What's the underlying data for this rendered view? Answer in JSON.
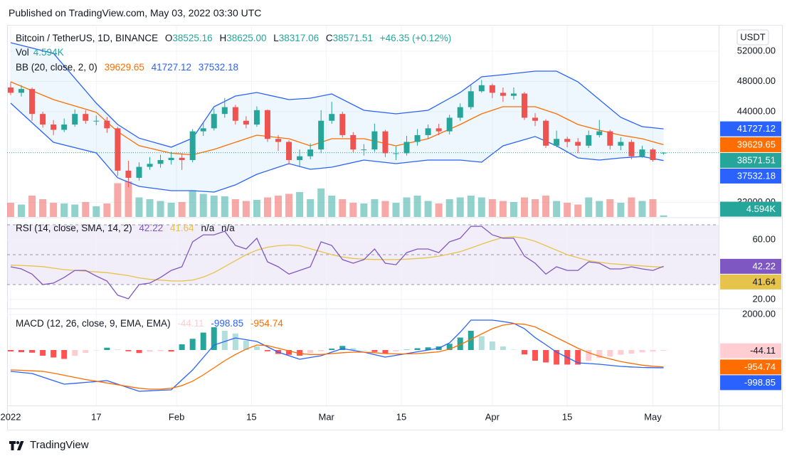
{
  "header": {
    "published": "Published on TradingView.com, May 03, 2022 03:30 UTC"
  },
  "footer": {
    "brand": "TradingView"
  },
  "chart_data": [
    {
      "type": "candlestick",
      "title": "Bitcoin / TetherUS, 1D, BINANCE",
      "currency": "USDT",
      "legend": [
        {
          "key": "O",
          "label": "38525.16"
        },
        {
          "key": "H",
          "label": "38625.00"
        },
        {
          "key": "L",
          "label": "38317.06"
        },
        {
          "key": "C",
          "label": "38571.51"
        }
      ],
      "change": "+46.35 (+0.12%)",
      "up_color": "#26a69a",
      "down_color": "#ef5350",
      "x": [
        0,
        2,
        4,
        6,
        8,
        10,
        12,
        14,
        16,
        18,
        20,
        22,
        24,
        26,
        28,
        30,
        32,
        34,
        36,
        38,
        40,
        42,
        44,
        46,
        48,
        50,
        52,
        54,
        56,
        58,
        60,
        62,
        64,
        66,
        68,
        70,
        72,
        74,
        76,
        78,
        80,
        82,
        84,
        86,
        88,
        90,
        92,
        94,
        96,
        98,
        100,
        102,
        104,
        106,
        108,
        110,
        112,
        114,
        116,
        118,
        120,
        122
      ],
      "open": [
        47200,
        46500,
        47000,
        43700,
        42300,
        41600,
        42300,
        43700,
        42800,
        42800,
        41800,
        36200,
        35250,
        36700,
        37100,
        37600,
        37900,
        37600,
        41400,
        41800,
        43700,
        44600,
        42800,
        42300,
        44200,
        40400,
        40000,
        37600,
        38100,
        39000,
        42800,
        43700,
        40900,
        39000,
        39000,
        41400,
        38500,
        38500,
        40000,
        40900,
        41800,
        41400,
        43200,
        44600,
        46700,
        47500,
        46500,
        46100,
        46400,
        43200,
        42800,
        39500,
        40400,
        40000,
        39500,
        40900,
        41400,
        39500,
        40000,
        38100,
        39000,
        38525.16
      ],
      "high": [
        47900,
        47500,
        47200,
        44000,
        42900,
        43100,
        44300,
        44200,
        43500,
        43300,
        42000,
        37500,
        37300,
        38000,
        38300,
        38700,
        38500,
        41700,
        42500,
        44400,
        45800,
        44900,
        43400,
        44700,
        44300,
        40900,
        40200,
        39000,
        39800,
        44200,
        45300,
        44000,
        41300,
        39700,
        42400,
        41600,
        39400,
        40800,
        41700,
        42300,
        42400,
        43600,
        45100,
        47500,
        48200,
        47700,
        47200,
        47200,
        46600,
        43800,
        43000,
        41500,
        40700,
        40500,
        41500,
        42900,
        41600,
        40600,
        40300,
        39500,
        39200,
        38625
      ],
      "low": [
        46200,
        46000,
        42800,
        41900,
        40900,
        41300,
        42000,
        42400,
        42200,
        41200,
        35500,
        34000,
        34900,
        36300,
        36600,
        37000,
        36300,
        37300,
        40800,
        41500,
        43200,
        42300,
        41800,
        42000,
        40000,
        38800,
        37000,
        36800,
        37700,
        38500,
        42400,
        40600,
        38600,
        38200,
        38700,
        38000,
        37600,
        38200,
        39500,
        40400,
        40900,
        41000,
        42800,
        44300,
        46500,
        45800,
        45300,
        45600,
        42900,
        42100,
        39200,
        39300,
        39300,
        38500,
        39200,
        40600,
        39000,
        38900,
        37700,
        37900,
        37400,
        38317.06
      ],
      "close": [
        46500,
        47000,
        43700,
        42300,
        41600,
        42300,
        43700,
        42800,
        42800,
        41800,
        36200,
        35250,
        36700,
        37100,
        37600,
        37900,
        37600,
        41400,
        41800,
        43700,
        44600,
        42800,
        42300,
        44200,
        40400,
        40000,
        37600,
        38100,
        39000,
        42800,
        43700,
        40900,
        39000,
        39000,
        41400,
        38500,
        38500,
        40000,
        40900,
        41800,
        41400,
        43200,
        44600,
        46700,
        47500,
        46500,
        46100,
        46400,
        43200,
        42800,
        39500,
        40400,
        40000,
        39500,
        40900,
        41400,
        39500,
        40000,
        38100,
        39000,
        37600,
        38571.51
      ],
      "volume": {
        "name": "Vol",
        "last_label": "4.594K",
        "ylim": [
          0,
          120
        ],
        "values": [
          40,
          35,
          60,
          50,
          40,
          38,
          35,
          42,
          30,
          38,
          95,
          100,
          55,
          50,
          45,
          40,
          42,
          75,
          65,
          60,
          58,
          50,
          45,
          48,
          55,
          60,
          65,
          70,
          50,
          80,
          60,
          50,
          40,
          38,
          50,
          45,
          40,
          55,
          60,
          45,
          38,
          50,
          55,
          60,
          55,
          50,
          45,
          42,
          55,
          50,
          60,
          45,
          40,
          35,
          55,
          45,
          50,
          40,
          55,
          45,
          50,
          4.594
        ]
      },
      "bb": {
        "name": "BB (20, close, 2, 0)",
        "fill": "rgba(33,150,243,0.08)",
        "x": [
          0,
          8,
          16,
          20,
          24,
          30,
          34,
          38,
          42,
          46,
          52,
          56,
          60,
          66,
          72,
          78,
          84,
          88,
          92,
          98,
          102,
          106,
          110,
          114,
          118,
          122
        ],
        "lines": [
          {
            "color": "#ff6d00",
            "values": [
              47950,
              45600,
              43910,
              41360,
              39500,
              38500,
              38300,
              39010,
              39950,
              40890,
              40420,
              39480,
              40420,
              40420,
              39480,
              40420,
              42300,
              43720,
              44660,
              44660,
              43720,
              42300,
              41550,
              40890,
              40420,
              39629.65
            ]
          },
          {
            "color": "#2962ff",
            "values": [
              53130,
              51720,
              45130,
              42300,
              40500,
              39300,
              40500,
              44660,
              46070,
              46540,
              45600,
              45790,
              46350,
              44190,
              43720,
              44190,
              46540,
              48610,
              48890,
              49360,
              49360,
              47950,
              45600,
              43250,
              42020,
              41727.12
            ]
          },
          {
            "color": "#2962ff",
            "values": [
              45130,
              39950,
              38540,
              35250,
              34120,
              33550,
              33550,
              33360,
              34310,
              35720,
              37130,
              36380,
              36660,
              37600,
              37130,
              37600,
              37600,
              37320,
              39480,
              40710,
              39480,
              37880,
              37600,
              37880,
              38070,
              37532.18
            ]
          }
        ]
      },
      "xlim": [
        -0.66,
        132.3
      ],
      "ylim": [
        30070,
        55480
      ],
      "yticks": [
        {
          "value": 52000,
          "label": "52000.00"
        },
        {
          "value": 48000,
          "label": "48000.00"
        },
        {
          "value": 44000,
          "label": "44000.00"
        },
        {
          "value": 32000,
          "label": "32000.00"
        }
      ]
    },
    {
      "type": "line",
      "title": "RSI (14, close, SMA, 14, 2)",
      "na_labels": [
        "n/a",
        "n/a"
      ],
      "bands": [
        70,
        50,
        30
      ],
      "band_fill": "rgba(126,87,194,0.1)",
      "x": [
        0,
        2,
        4,
        6,
        8,
        10,
        12,
        14,
        16,
        18,
        20,
        22,
        24,
        26,
        28,
        30,
        32,
        34,
        36,
        38,
        40,
        42,
        44,
        46,
        48,
        50,
        52,
        54,
        56,
        58,
        60,
        62,
        64,
        66,
        68,
        70,
        72,
        74,
        76,
        78,
        80,
        82,
        84,
        86,
        88,
        90,
        92,
        94,
        96,
        98,
        100,
        102,
        104,
        106,
        108,
        110,
        112,
        114,
        116,
        118,
        120,
        122
      ],
      "series": [
        {
          "color": "#7e57c2",
          "values": [
            41.9,
            40.5,
            37,
            30,
            31,
            34.8,
            39.5,
            39.5,
            35.7,
            32.4,
            22.9,
            20.5,
            30,
            31,
            34.8,
            39.5,
            41.9,
            58.6,
            63.3,
            63.3,
            65.7,
            56.2,
            53.8,
            61,
            45.2,
            41.9,
            37,
            39.5,
            41.9,
            58.6,
            56.2,
            46.7,
            44.3,
            46.7,
            53.8,
            44.3,
            43.3,
            51.4,
            53.8,
            53.8,
            51.4,
            58.6,
            61,
            69,
            69,
            63.3,
            61,
            61,
            49,
            44.3,
            37,
            41.9,
            39.5,
            39.5,
            45.2,
            44.3,
            40.5,
            40.5,
            41.9,
            40.5,
            39.5,
            42.22
          ]
        },
        {
          "color": "#e6c34a",
          "values": [
            43,
            42.8,
            42.5,
            42,
            41,
            40,
            39.5,
            39,
            38.5,
            38,
            37,
            36,
            34.5,
            33.5,
            33,
            32.5,
            32.4,
            33,
            35,
            38,
            42,
            46,
            50,
            53,
            55,
            56,
            56.5,
            56,
            54,
            52,
            50,
            48.5,
            47.5,
            47,
            46.8,
            46.7,
            46.7,
            47,
            47.5,
            48,
            49,
            50.5,
            52,
            54.5,
            57,
            59.5,
            61.5,
            62,
            61,
            59,
            56,
            53,
            50,
            48,
            46,
            45,
            44,
            43.5,
            43,
            42.5,
            42,
            41.64
          ]
        }
      ],
      "xlim": [
        -0.66,
        132.3
      ],
      "ylim": [
        14.29,
        74.29
      ],
      "yticks": [
        {
          "value": 60,
          "label": "60.00"
        },
        {
          "value": 20,
          "label": "20.00"
        }
      ]
    },
    {
      "type": "macd",
      "title": "MACD (12, 26, close, 9, EMA, EMA)",
      "x": [
        0,
        2,
        4,
        6,
        8,
        10,
        12,
        14,
        16,
        18,
        20,
        22,
        24,
        26,
        28,
        30,
        32,
        34,
        36,
        38,
        40,
        42,
        44,
        46,
        48,
        50,
        52,
        54,
        56,
        58,
        60,
        62,
        64,
        66,
        68,
        70,
        72,
        74,
        76,
        78,
        80,
        82,
        84,
        86,
        88,
        90,
        92,
        94,
        96,
        98,
        100,
        102,
        104,
        106,
        108,
        110,
        112,
        114,
        116,
        118,
        120,
        122
      ],
      "histogram": {
        "colors": [
          "#26a69a",
          "#b2dfdb",
          "#ffcdd2",
          "#ff5252"
        ],
        "values": [
          -80,
          -120,
          -150,
          -320,
          -420,
          -500,
          -330,
          -160,
          -20,
          130,
          30,
          -70,
          -170,
          -90,
          -60,
          -90,
          320,
          630,
          980,
          1280,
          1080,
          930,
          530,
          200,
          -70,
          -220,
          -270,
          -320,
          -170,
          -70,
          80,
          230,
          100,
          0,
          -110,
          -200,
          -80,
          20,
          100,
          150,
          200,
          350,
          700,
          1080,
          780,
          480,
          200,
          20,
          -250,
          -600,
          -700,
          -820,
          -820,
          -820,
          -610,
          -450,
          -360,
          -270,
          -200,
          -130,
          -80,
          -44.11
        ]
      },
      "series": [
        {
          "color": "#2962ff",
          "values": [
            -1200,
            -1260,
            -1320,
            -1520,
            -1720,
            -1920,
            -1870,
            -1820,
            -1770,
            -1720,
            -1920,
            -2120,
            -2320,
            -2290,
            -2260,
            -2240,
            -1680,
            -1120,
            -420,
            280,
            480,
            680,
            580,
            480,
            180,
            -120,
            -320,
            -520,
            -420,
            -320,
            -120,
            80,
            -20,
            -120,
            -260,
            -400,
            -300,
            -200,
            -100,
            0,
            100,
            400,
            1000,
            1680,
            1680,
            1680,
            1600,
            1500,
            1200,
            700,
            300,
            -120,
            -420,
            -720,
            -760,
            -800,
            -860,
            -920,
            -950,
            -980,
            -990,
            -998.85
          ]
        },
        {
          "color": "#ff6d00",
          "values": [
            -1120,
            -1140,
            -1170,
            -1200,
            -1300,
            -1420,
            -1540,
            -1660,
            -1750,
            -1850,
            -1950,
            -2050,
            -2150,
            -2200,
            -2200,
            -2150,
            -2000,
            -1750,
            -1400,
            -1000,
            -600,
            -250,
            50,
            280,
            250,
            100,
            -50,
            -200,
            -250,
            -250,
            -200,
            -150,
            -120,
            -120,
            -150,
            -200,
            -220,
            -220,
            -200,
            -150,
            -100,
            50,
            300,
            600,
            900,
            1200,
            1400,
            1480,
            1450,
            1300,
            1000,
            700,
            400,
            100,
            -150,
            -350,
            -500,
            -650,
            -750,
            -850,
            -910,
            -954.74
          ]
        }
      ],
      "xlim": [
        -0.66,
        132.3
      ],
      "ylim": [
        -3120,
        2280
      ],
      "yticks": [
        {
          "value": 2000,
          "label": "2000.00"
        }
      ],
      "xticks": [
        {
          "value": 0,
          "label": "2022"
        },
        {
          "value": 16,
          "label": "17"
        },
        {
          "value": 31,
          "label": "Feb"
        },
        {
          "value": 45,
          "label": "15"
        },
        {
          "value": 59,
          "label": "Mar"
        },
        {
          "value": 73,
          "label": "15"
        },
        {
          "value": 90,
          "label": "Apr"
        },
        {
          "value": 104,
          "label": "15"
        },
        {
          "value": 120,
          "label": "May"
        }
      ]
    }
  ]
}
